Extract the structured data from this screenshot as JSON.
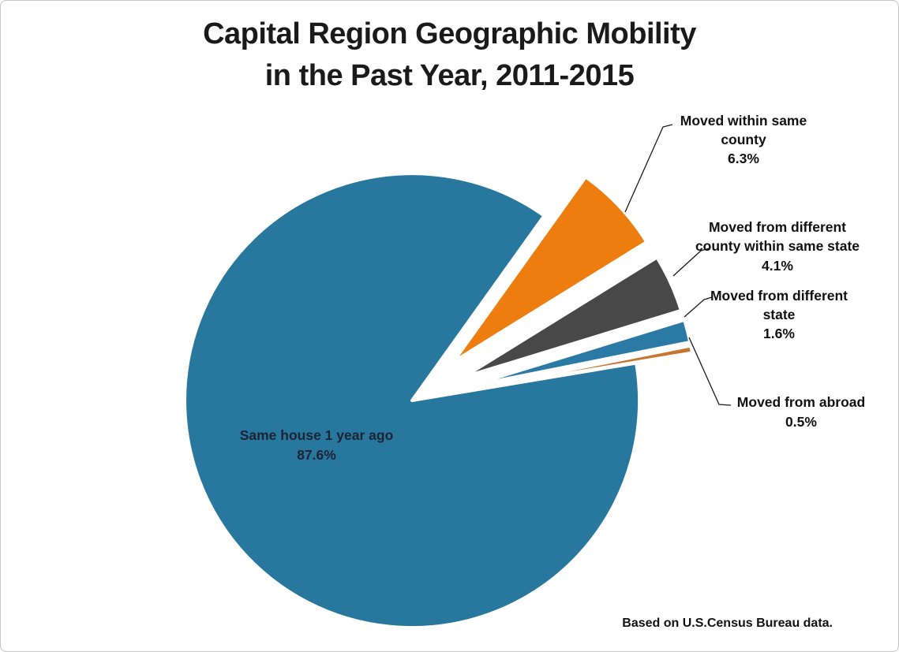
{
  "title": {
    "line1": "Capital Region Geographic Mobility",
    "line2": "in the Past Year, 2011-2015"
  },
  "chart_data": {
    "type": "pie",
    "title": "Capital Region Geographic Mobility in the Past Year, 2011-2015",
    "unit": "%",
    "rotation_deg": 80.5,
    "legend": "none",
    "label_style": "callouts-with-leader-lines",
    "slices": [
      {
        "label": "Same house 1 year ago",
        "value": 87.6,
        "color": "#28779E",
        "exploded": false
      },
      {
        "label": "Moved within same county",
        "value": 6.3,
        "color": "#ED7D0E",
        "exploded": true
      },
      {
        "label": "Moved from different county within same state",
        "value": 4.1,
        "color": "#484848",
        "exploded": true
      },
      {
        "label": "Moved from different state",
        "value": 1.6,
        "color": "#2B7AA6",
        "exploded": true
      },
      {
        "label": "Moved from abroad",
        "value": 0.5,
        "color": "#C5772F",
        "exploded": true
      }
    ],
    "annotations": {
      "inner_label": {
        "lines": [
          "Same house 1 year ago",
          "87.6%"
        ],
        "color": "#1B2433"
      },
      "callouts": [
        {
          "lines": [
            "Moved within same",
            "county",
            "6.3%"
          ]
        },
        {
          "lines": [
            "Moved from different",
            "county within same state",
            "4.1%"
          ]
        },
        {
          "lines": [
            "Moved from different",
            "state",
            "1.6%"
          ]
        },
        {
          "lines": [
            "Moved from abroad",
            "0.5%"
          ]
        }
      ]
    }
  },
  "footer": {
    "text": "Based on U.S.Census Bureau data."
  }
}
